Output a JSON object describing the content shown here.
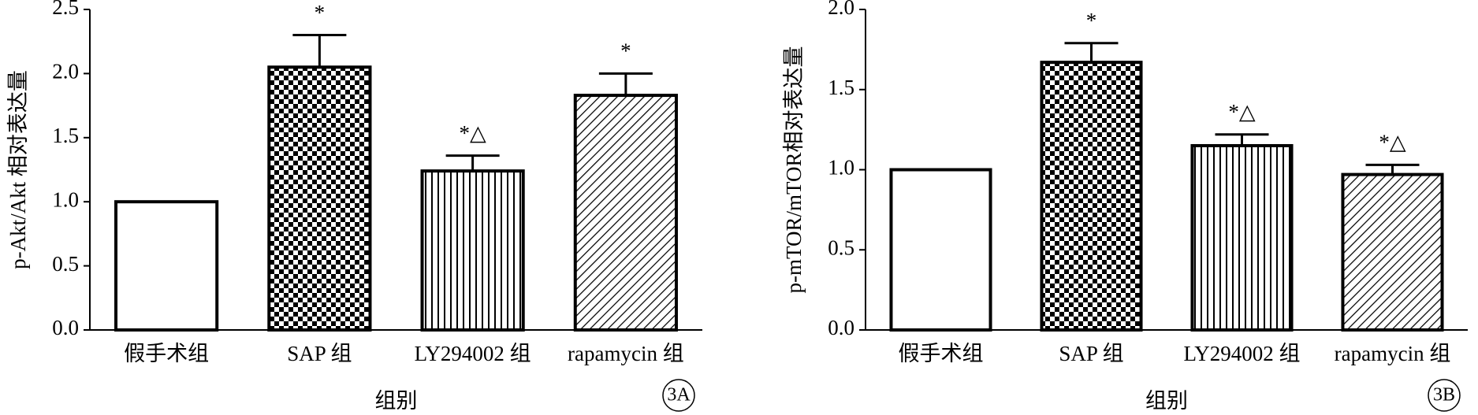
{
  "chart_data": [
    {
      "type": "bar",
      "panel_label": "3A",
      "y_label": "p-Akt/Akt 相对表达量",
      "x_label": "组别",
      "categories": [
        "假手术组",
        "SAP 组",
        "LY294002 组",
        "rapamycin 组"
      ],
      "values": [
        1.0,
        2.05,
        1.24,
        1.83
      ],
      "errors": [
        null,
        0.25,
        0.12,
        0.17
      ],
      "annotations": [
        null,
        "*",
        "*△",
        "*"
      ],
      "patterns": [
        "none",
        "checker",
        "vertical",
        "diagonal"
      ],
      "color": "#000000",
      "ylim": [
        0,
        2.5
      ],
      "yticks": [
        {
          "value": 0,
          "label": "0.0"
        },
        0.5,
        {
          "value": 1,
          "label": "1.0"
        },
        1.5,
        {
          "value": 2,
          "label": "2.0"
        },
        2.5
      ]
    },
    {
      "type": "bar",
      "panel_label": "3B",
      "y_label": "p-mTOR/mTOR相对表达量",
      "x_label": "组别",
      "categories": [
        "假手术组",
        "SAP 组",
        "LY294002 组",
        "rapamycin 组"
      ],
      "values": [
        1.0,
        1.67,
        1.15,
        0.97
      ],
      "errors": [
        null,
        0.12,
        0.07,
        0.06
      ],
      "annotations": [
        null,
        "*",
        "*△",
        "*△"
      ],
      "patterns": [
        "none",
        "checker",
        "vertical",
        "diagonal"
      ],
      "color": "#000000",
      "ylim": [
        0,
        2.0
      ],
      "yticks": [
        {
          "value": 0,
          "label": "0.0"
        },
        0.5,
        {
          "value": 1,
          "label": "1.0"
        },
        1.5,
        {
          "value": 2,
          "label": "2.0"
        }
      ]
    }
  ]
}
